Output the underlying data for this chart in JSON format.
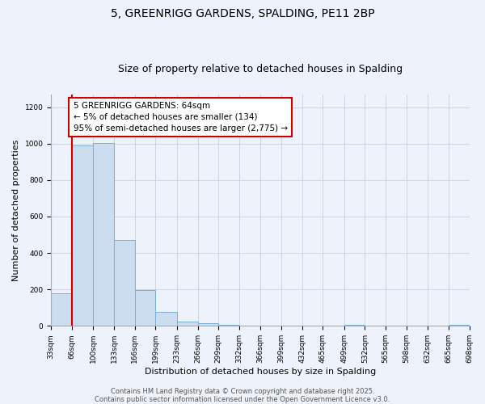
{
  "title": "5, GREENRIGG GARDENS, SPALDING, PE11 2BP",
  "subtitle": "Size of property relative to detached houses in Spalding",
  "xlabel": "Distribution of detached houses by size in Spalding",
  "ylabel": "Number of detached properties",
  "bin_edges": [
    33,
    66,
    100,
    133,
    166,
    199,
    233,
    266,
    299,
    332,
    366,
    399,
    432,
    465,
    499,
    532,
    565,
    598,
    632,
    665,
    698
  ],
  "bin_labels": [
    "33sqm",
    "66sqm",
    "100sqm",
    "133sqm",
    "166sqm",
    "199sqm",
    "233sqm",
    "266sqm",
    "299sqm",
    "332sqm",
    "366sqm",
    "399sqm",
    "432sqm",
    "465sqm",
    "499sqm",
    "532sqm",
    "565sqm",
    "598sqm",
    "632sqm",
    "665sqm",
    "698sqm"
  ],
  "bar_heights": [
    180,
    990,
    1005,
    470,
    195,
    75,
    25,
    15,
    5,
    0,
    0,
    0,
    0,
    0,
    5,
    0,
    0,
    0,
    0,
    5
  ],
  "bar_color": "#ccddf0",
  "bar_edgecolor": "#7aadd4",
  "red_line_x": 66,
  "annotation_box_text": "5 GREENRIGG GARDENS: 64sqm\n← 5% of detached houses are smaller (134)\n95% of semi-detached houses are larger (2,775) →",
  "annotation_box_color": "white",
  "annotation_box_edgecolor": "#cc0000",
  "red_line_color": "#cc0000",
  "ylim": [
    0,
    1270
  ],
  "yticks": [
    0,
    200,
    400,
    600,
    800,
    1000,
    1200
  ],
  "grid_color": "#c8d0e0",
  "bg_color": "#eef2fa",
  "footer_line1": "Contains HM Land Registry data © Crown copyright and database right 2025.",
  "footer_line2": "Contains public sector information licensed under the Open Government Licence v3.0.",
  "title_fontsize": 10,
  "subtitle_fontsize": 9,
  "label_fontsize": 8,
  "tick_fontsize": 6.5,
  "annotation_fontsize": 7.5,
  "footer_fontsize": 6
}
